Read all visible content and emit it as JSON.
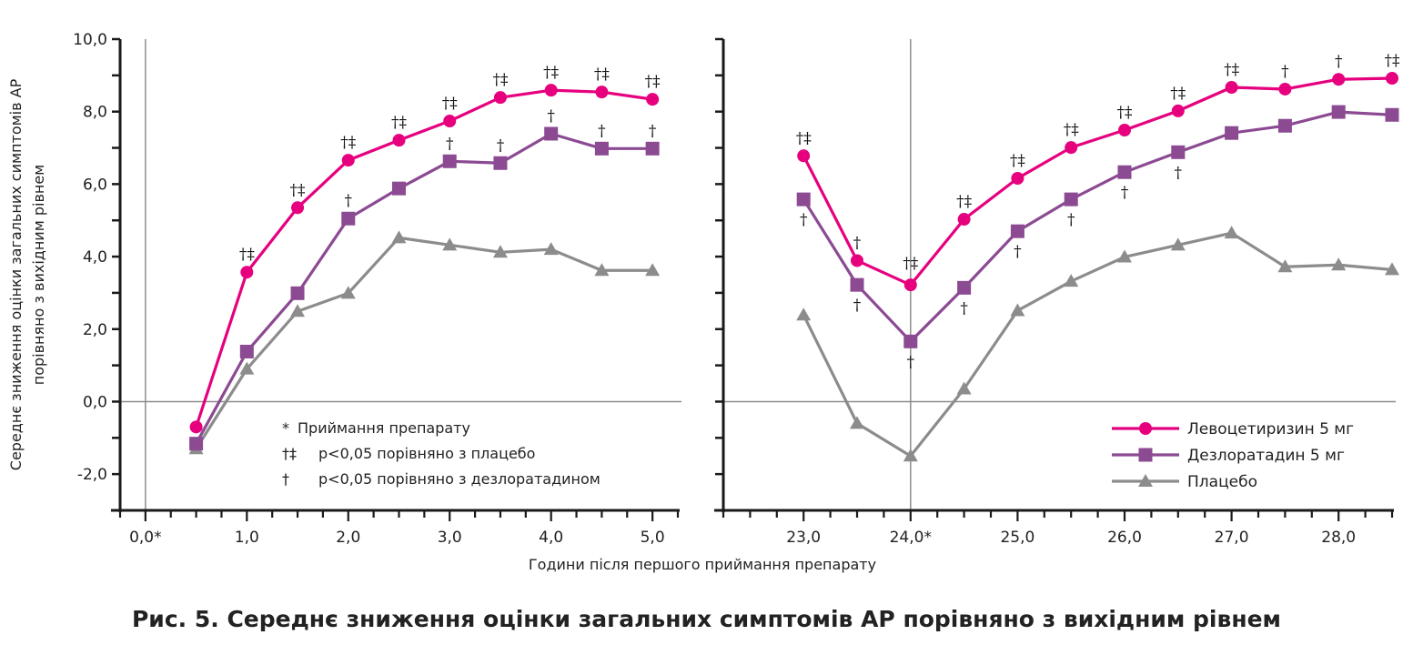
{
  "caption": "Рис. 5. Середнє зниження оцінки загальних симптомів АР порівняно з вихідним рівнем",
  "colors": {
    "levo": "#e6007e",
    "desl": "#8b4a92",
    "plac": "#8c8c8c",
    "axis": "#1a1a1a",
    "refline": "#8c8c8c"
  },
  "chart_data": {
    "type": "line",
    "title": "Рис. 5. Середнє зниження оцінки загальних симптомів АР порівняно з вихідним рівнем",
    "ylabel_lines": [
      "Середнє зниження оцінки загальних симптомів АР",
      "порівняно з вихідним рівнем"
    ],
    "xlabel": "Години після першого приймання препарату",
    "ylim": [
      -3,
      10
    ],
    "yticks": [
      -2,
      0,
      2,
      4,
      6,
      8,
      10
    ],
    "ytick_labels": [
      "-2,0",
      "0,0",
      "2,0",
      "4,0",
      "6,0",
      "8,0",
      "10,0"
    ],
    "grid": false,
    "legend_position": "bottom-right",
    "legend": [
      "Левоцетиризин 5 мг",
      "Дезлоратадин 5 мг",
      "Плацебо"
    ],
    "notes": [
      {
        "symbol": "*",
        "text": "Приймання препарату"
      },
      {
        "symbol": "†‡",
        "text": "p<0,05 порівняно з плацебо"
      },
      {
        "symbol": "†",
        "text": "p<0,05 порівняно з дезлоратадином"
      }
    ],
    "panels": [
      {
        "name": "left",
        "xlim": [
          -0.25,
          5.25
        ],
        "xticks": [
          0,
          1,
          2,
          3,
          4,
          5
        ],
        "xtick_labels": [
          "0,0*",
          "1,0",
          "2,0",
          "3,0",
          "4,0",
          "5,0"
        ],
        "x": [
          0.5,
          1.0,
          1.5,
          2.0,
          2.5,
          3.0,
          3.5,
          4.0,
          4.5,
          5.0
        ],
        "series": [
          {
            "key": "levo",
            "name": "Левоцетиризин 5 мг",
            "marker": "circle",
            "values": [
              -0.7,
              3.57,
              5.35,
              6.66,
              7.21,
              7.74,
              8.39,
              8.59,
              8.54,
              8.34
            ],
            "sig": [
              "",
              "†‡",
              "†‡",
              "†‡",
              "†‡",
              "†‡",
              "†‡",
              "†‡",
              "†‡",
              "†‡"
            ],
            "sig_pos": "above"
          },
          {
            "key": "desl",
            "name": "Дезлоратадин 5 мг",
            "marker": "square",
            "values": [
              -1.16,
              1.38,
              2.99,
              5.05,
              5.88,
              6.63,
              6.58,
              7.39,
              6.98,
              6.98
            ],
            "sig": [
              "",
              "",
              "",
              "†",
              "",
              "†",
              "†",
              "†",
              "†",
              "†"
            ],
            "sig_pos": "above"
          },
          {
            "key": "plac",
            "name": "Плацебо",
            "marker": "triangle",
            "values": [
              -1.3,
              0.9,
              2.49,
              2.99,
              4.52,
              4.32,
              4.12,
              4.2,
              3.62,
              3.62
            ],
            "sig": [
              "",
              "",
              "",
              "",
              "",
              "",
              "",
              "",
              "",
              ""
            ],
            "sig_pos": "above"
          }
        ]
      },
      {
        "name": "right",
        "xlim": [
          22.25,
          28.5
        ],
        "xticks": [
          23,
          24,
          25,
          26,
          27,
          28
        ],
        "xtick_labels": [
          "23,0",
          "24,0*",
          "25,0",
          "26,0",
          "27,0",
          "28,0"
        ],
        "x": [
          23.0,
          23.5,
          24.0,
          24.5,
          25.0,
          25.5,
          26.0,
          26.5,
          27.0,
          27.5,
          28.0,
          28.5
        ],
        "series": [
          {
            "key": "levo",
            "name": "Левоцетиризин 5 мг",
            "marker": "circle",
            "values": [
              6.78,
              3.89,
              3.22,
              5.03,
              6.16,
              7.01,
              7.49,
              8.02,
              8.67,
              8.62,
              8.89,
              8.92
            ],
            "sig": [
              "†‡",
              "†",
              "†‡",
              "†‡",
              "†‡",
              "†‡",
              "†‡",
              "†‡",
              "†‡",
              "†",
              "†",
              "†‡"
            ],
            "sig_pos": "above"
          },
          {
            "key": "desl",
            "name": "Дезлоратадин 5 мг",
            "marker": "square",
            "values": [
              5.58,
              3.22,
              1.66,
              3.14,
              4.7,
              5.58,
              6.33,
              6.88,
              7.41,
              7.61,
              7.99,
              7.91
            ],
            "sig": [
              "†",
              "†",
              "†",
              "†",
              "†",
              "†",
              "†",
              "†",
              "",
              "",
              "",
              ""
            ],
            "sig_pos": "below"
          },
          {
            "key": "plac",
            "name": "Плацебо",
            "marker": "triangle",
            "values": [
              2.39,
              -0.6,
              -1.5,
              0.35,
              2.51,
              3.32,
              3.99,
              4.32,
              4.65,
              3.72,
              3.77,
              3.64
            ],
            "sig": [
              "",
              "",
              "",
              "",
              "",
              "",
              "",
              "",
              "",
              "",
              "",
              ""
            ],
            "sig_pos": "above"
          }
        ]
      }
    ]
  }
}
